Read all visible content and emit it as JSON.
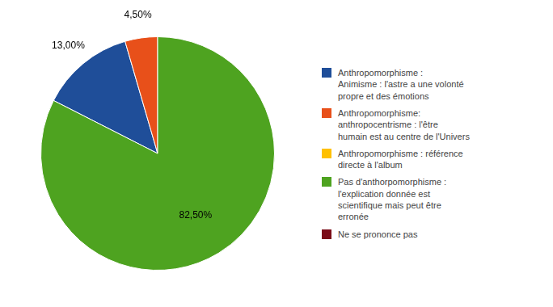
{
  "chart_data": {
    "type": "pie",
    "categories": [
      "Anthropomorphisme  :\nAnimisme  : l'astre a une volonté\npropre et des émotions",
      "Anthropomorphisme:\nanthropocentrisme  : l'être\nhumain est au centre de l'Univers",
      "Anthropomorphisme  : référence\ndirecte à l'album",
      "Pas d'anthorpomorphisme  :\nl'explication donnée est\nscientifique mais peut être\nerronée",
      "Ne se prononce pas"
    ],
    "values": [
      13.0,
      4.5,
      0.0,
      82.5,
      0.0
    ],
    "value_labels": [
      "13,00%",
      "4,50%",
      null,
      "82,50%",
      null
    ],
    "colors": [
      "#1F4E99",
      "#E8501A",
      "#FFC000",
      "#4EA320",
      "#7B0C18"
    ],
    "data_labels": true,
    "legend": "right"
  }
}
